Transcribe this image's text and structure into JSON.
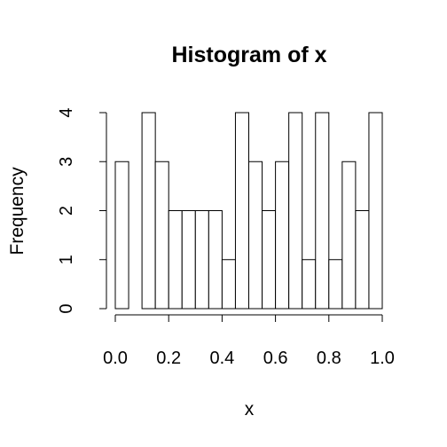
{
  "chart_data": {
    "type": "bar",
    "title": "Histogram of x",
    "xlabel": "x",
    "ylabel": "Frequency",
    "bin_edges": [
      0.0,
      0.05,
      0.1,
      0.15,
      0.2,
      0.25,
      0.3,
      0.35,
      0.4,
      0.45,
      0.5,
      0.55,
      0.6,
      0.65,
      0.7,
      0.75,
      0.8,
      0.85,
      0.9,
      0.95,
      1.0
    ],
    "values": [
      3,
      0,
      4,
      3,
      2,
      2,
      2,
      2,
      1,
      4,
      3,
      2,
      3,
      4,
      1,
      4,
      1,
      3,
      2,
      4
    ],
    "xlim": [
      0.0,
      1.0
    ],
    "ylim": [
      0,
      4
    ],
    "x_ticks": [
      0.0,
      0.2,
      0.4,
      0.6,
      0.8,
      1.0
    ],
    "x_tick_labels": [
      "0.0",
      "0.2",
      "0.4",
      "0.6",
      "0.8",
      "1.0"
    ],
    "y_ticks": [
      0,
      1,
      2,
      3,
      4
    ],
    "y_tick_labels": [
      "0",
      "1",
      "2",
      "3",
      "4"
    ],
    "grid": false,
    "legend": "none",
    "bar_fill": "#ffffff",
    "bar_stroke": "#000000"
  }
}
